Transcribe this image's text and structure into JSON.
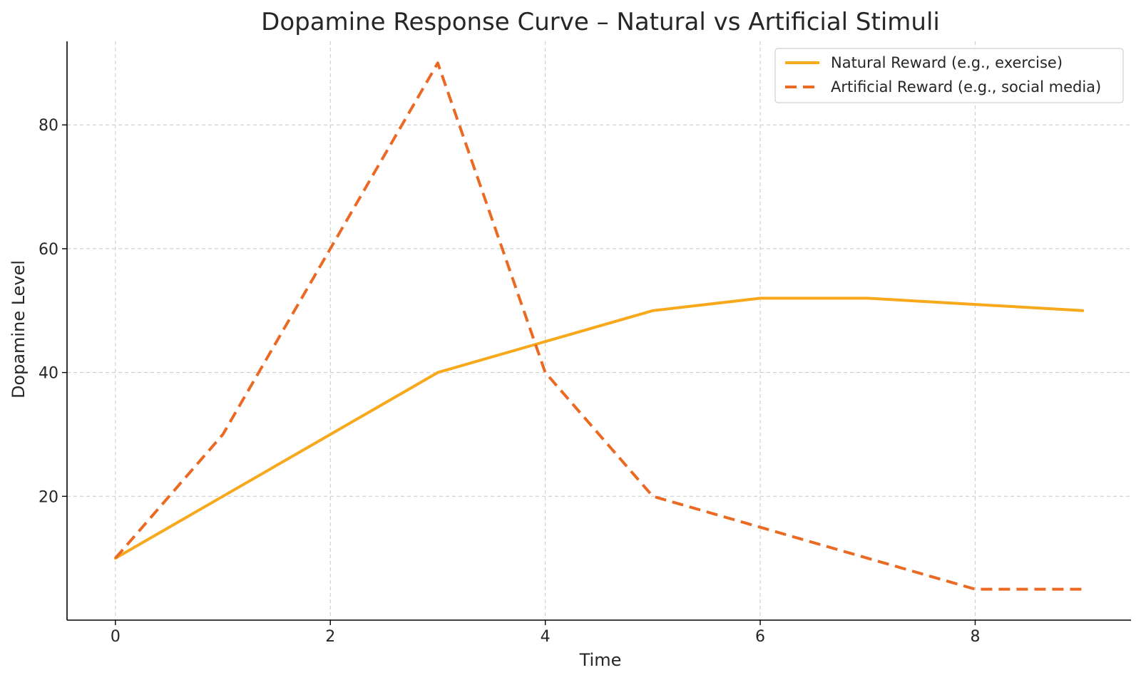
{
  "chart_data": {
    "type": "line",
    "title": "Dopamine Response Curve – Natural vs Artificial Stimuli",
    "xlabel": "Time",
    "ylabel": "Dopamine Level",
    "xlim": [
      -0.45,
      9.45
    ],
    "ylim": [
      0,
      93.5
    ],
    "xticks": [
      0,
      2,
      4,
      6,
      8
    ],
    "yticks": [
      20,
      40,
      60,
      80
    ],
    "grid": true,
    "legend": "top-right",
    "x": [
      0,
      1,
      2,
      3,
      4,
      5,
      6,
      7,
      8,
      9
    ],
    "series": [
      {
        "name": "Natural Reward (e.g., exercise)",
        "values": [
          10,
          20,
          30,
          40,
          45,
          50,
          52,
          52,
          51,
          50
        ],
        "color": "#F7A81B",
        "style": "solid"
      },
      {
        "name": "Artificial Reward (e.g., social media)",
        "values": [
          10,
          30,
          60,
          90,
          40,
          20,
          15,
          10,
          5,
          5
        ],
        "color": "#EA6A24",
        "style": "dashed"
      }
    ]
  }
}
